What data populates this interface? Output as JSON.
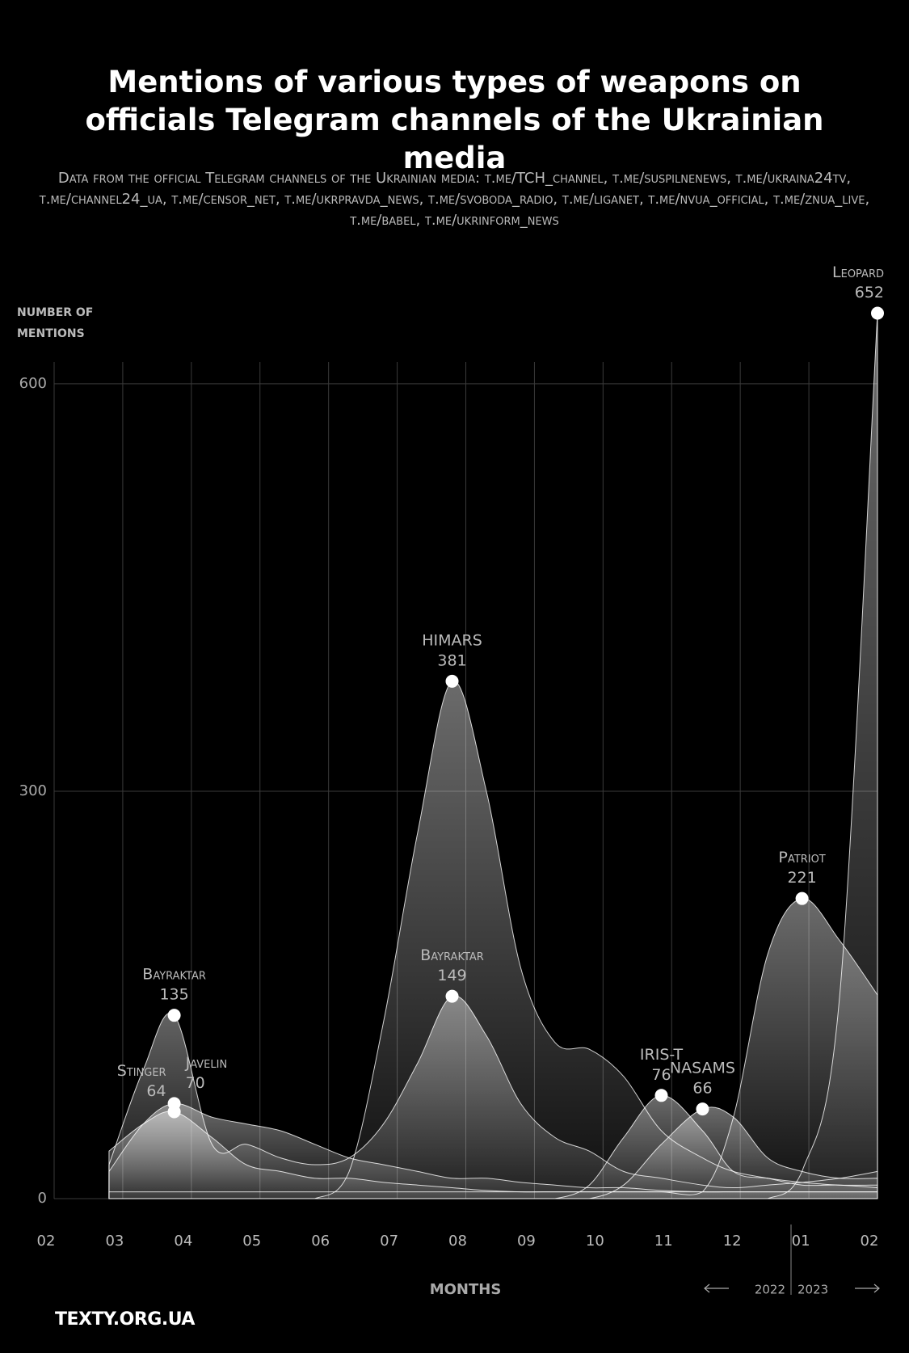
{
  "chart_data": {
    "type": "area",
    "title": "Mentions of various types of weapons on officials Telegram channels of the Ukrainian media",
    "subtitle": "Data from the official Telegram channels of the Ukrainian media: t.me/TCH_channel, t.me/suspilnenews, t.me/ukraina24tv, t.me/channel24_ua, t.me/censor_net, t.me/ukrpravda_news, t.me/svoboda_radio, t.me/liganet, t.me/nvua_official, t.me/znua_live, t.me/babel, t.me/ukrinform_news",
    "y_label": "NUMBER OF MENTIONS",
    "x_label": "MONTHS",
    "year_labels": [
      "2022",
      "2023"
    ],
    "source": "TEXTY.ORG.UA",
    "xlim": [
      0,
      12
    ],
    "xticks": [
      {
        "value": 0,
        "label": "02"
      },
      {
        "value": 1,
        "label": "03"
      },
      {
        "value": 2,
        "label": "04"
      },
      {
        "value": 3,
        "label": "05"
      },
      {
        "value": 4,
        "label": "06"
      },
      {
        "value": 5,
        "label": "07"
      },
      {
        "value": 6,
        "label": "08"
      },
      {
        "value": 7,
        "label": "09"
      },
      {
        "value": 8,
        "label": "10"
      },
      {
        "value": 9,
        "label": "11"
      },
      {
        "value": 10,
        "label": "12"
      },
      {
        "value": 11,
        "label": "01"
      },
      {
        "value": 12,
        "label": "02"
      }
    ],
    "ylim": [
      0,
      616
    ],
    "yticks": [
      0,
      300,
      600
    ],
    "grid": true,
    "x": [
      0.8,
      1.3,
      1.75,
      2.3,
      2.8,
      3.3,
      3.8,
      4.3,
      4.8,
      5.3,
      5.8,
      6.3,
      6.8,
      7.3,
      7.8,
      8.3,
      8.85,
      9.45,
      9.9,
      10.4,
      10.9,
      11.45,
      12
    ],
    "series": [
      {
        "name": "Bayraktar",
        "color": "#ffffff",
        "values": [
          25,
          95,
          135,
          40,
          40,
          30,
          25,
          30,
          55,
          100,
          149,
          120,
          70,
          45,
          35,
          20,
          15,
          10,
          8,
          10,
          12,
          15,
          20
        ]
      },
      {
        "name": "Stinger",
        "color": "#ffffff",
        "values": [
          35,
          55,
          64,
          45,
          25,
          20,
          15,
          15,
          12,
          10,
          8,
          6,
          5,
          5,
          5,
          5,
          5,
          5,
          5,
          5,
          5,
          5,
          5
        ]
      },
      {
        "name": "Javelin",
        "color": "#ffffff",
        "values": [
          20,
          55,
          70,
          60,
          55,
          50,
          40,
          30,
          25,
          20,
          15,
          15,
          12,
          10,
          8,
          8,
          6,
          5,
          5,
          5,
          5,
          5,
          5
        ]
      },
      {
        "name": "HIMARS",
        "color": "#ffffff",
        "values": [
          0,
          0,
          0,
          0,
          0,
          0,
          0,
          20,
          130,
          270,
          381,
          300,
          170,
          115,
          110,
          90,
          50,
          30,
          20,
          15,
          10,
          10,
          8
        ]
      },
      {
        "name": "IRIS-T",
        "color": "#ffffff",
        "values": [
          0,
          0,
          0,
          0,
          0,
          0,
          0,
          0,
          0,
          0,
          0,
          0,
          0,
          0,
          10,
          45,
          76,
          50,
          20,
          15,
          12,
          10,
          10
        ]
      },
      {
        "name": "NASAMS",
        "color": "#ffffff",
        "values": [
          0,
          0,
          0,
          0,
          0,
          0,
          0,
          0,
          0,
          0,
          0,
          0,
          0,
          0,
          0,
          10,
          40,
          66,
          60,
          30,
          20,
          15,
          15
        ]
      },
      {
        "name": "Patriot",
        "color": "#ffffff",
        "values": [
          5,
          5,
          5,
          5,
          5,
          5,
          5,
          5,
          5,
          5,
          5,
          5,
          5,
          5,
          5,
          5,
          5,
          5,
          60,
          180,
          221,
          190,
          150
        ]
      },
      {
        "name": "Leopard",
        "color": "#ffffff",
        "values": [
          0,
          0,
          0,
          0,
          0,
          0,
          0,
          0,
          0,
          0,
          0,
          0,
          0,
          0,
          0,
          0,
          0,
          0,
          0,
          0,
          20,
          150,
          652
        ]
      }
    ]
  }
}
